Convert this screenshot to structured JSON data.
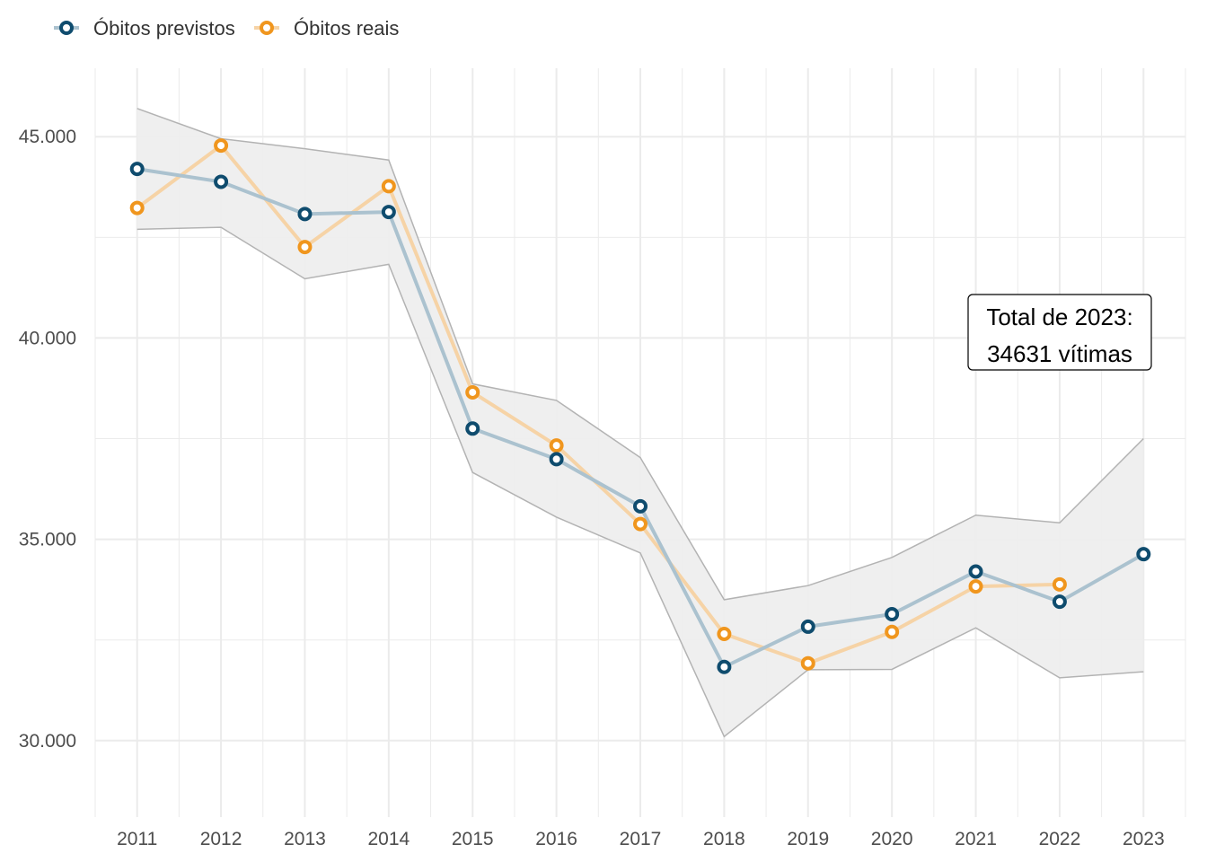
{
  "colors": {
    "predicted": "#0f4c6e",
    "actual": "#f0961e",
    "predicted_line": "#abc2cf",
    "actual_line": "#f6d3a6",
    "band_fill": "#eeeeee",
    "band_edge": "#b3b3b3",
    "grid": "#ebebeb"
  },
  "legend": {
    "predicted_label": "Óbitos previstos",
    "actual_label": "Óbitos reais",
    "position": "top-left"
  },
  "annotation": {
    "line1": "Total de 2023:",
    "line2": "34631 vítimas"
  },
  "chart_data": {
    "type": "line",
    "x": [
      2011,
      2012,
      2013,
      2014,
      2015,
      2016,
      2017,
      2018,
      2019,
      2020,
      2021,
      2022,
      2023
    ],
    "series": [
      {
        "name": "Óbitos previstos",
        "values": [
          44200,
          43880,
          43080,
          43130,
          37750,
          36990,
          35820,
          31830,
          32830,
          33140,
          34200,
          33450,
          34631
        ]
      },
      {
        "name": "Óbitos reais",
        "values": [
          43230,
          44780,
          42260,
          43770,
          38650,
          37330,
          35380,
          32650,
          31920,
          32700,
          33830,
          33880,
          null
        ]
      }
    ],
    "band": {
      "lower": [
        42700,
        42750,
        41470,
        41830,
        36660,
        35550,
        34660,
        30100,
        31760,
        31770,
        32800,
        31560,
        31710
      ],
      "upper": [
        45700,
        44950,
        44700,
        44420,
        38860,
        38450,
        37030,
        33500,
        33850,
        34550,
        35600,
        35410,
        37500
      ]
    },
    "y_ticks": [
      30000,
      35000,
      40000,
      45000
    ],
    "y_tick_labels": [
      "30.000",
      "35.000",
      "40.000",
      "45.000"
    ],
    "x_tick_labels": [
      "2011",
      "2012",
      "2013",
      "2014",
      "2015",
      "2016",
      "2017",
      "2018",
      "2019",
      "2020",
      "2021",
      "2022",
      "2023"
    ],
    "ylim": [
      28100,
      46700
    ],
    "xlim": [
      2010.5,
      2023.5
    ],
    "grid": true,
    "xlabel": "",
    "ylabel": "",
    "title": ""
  }
}
